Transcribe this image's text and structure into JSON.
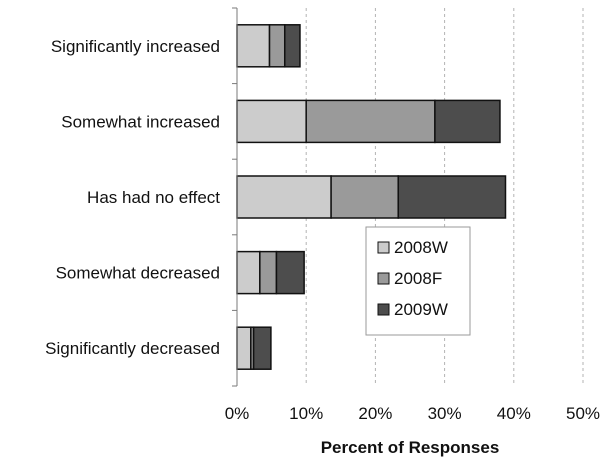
{
  "chart_data": {
    "type": "bar",
    "orientation": "horizontal",
    "stacked": true,
    "title": "",
    "xlabel": "Percent of Responses",
    "ylabel": "",
    "xlim": [
      0,
      50
    ],
    "x_ticks": [
      "0%",
      "10%",
      "20%",
      "30%",
      "40%",
      "50%"
    ],
    "x_tick_values": [
      0,
      10,
      20,
      30,
      40,
      50
    ],
    "grid": "vertical dashed",
    "legend_position": "center-right",
    "categories": [
      "Significantly increased",
      "Somewhat increased",
      "Has had no effect",
      "Somewhat decreased",
      "Significantly decreased"
    ],
    "series": [
      {
        "name": "2008W",
        "color": "#cccccc",
        "values": [
          4.7,
          10.0,
          13.6,
          3.3,
          2.0
        ]
      },
      {
        "name": "2008F",
        "color": "#9a9a9a",
        "values": [
          2.2,
          18.6,
          9.7,
          2.4,
          0.4
        ]
      },
      {
        "name": "2009W",
        "color": "#4d4d4d",
        "values": [
          2.2,
          9.4,
          15.5,
          4.0,
          2.5
        ]
      }
    ]
  }
}
